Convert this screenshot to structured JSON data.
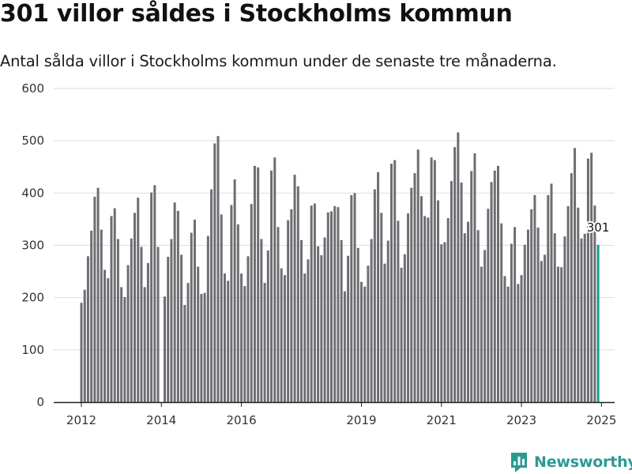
{
  "header": {
    "title": "301 villor såldes i Stockholms kommun",
    "subtitle": "Antal sålda villor i Stockholms kommun under de senaste tre månaderna."
  },
  "brand": {
    "name": "Newsworthy",
    "icon": "bar-chart-logo-icon"
  },
  "colors": {
    "bar": "#6e6d72",
    "highlight": "#1b9a8e",
    "grid": "#dddddd",
    "axis": "#222222",
    "brand": "#2b9a93"
  },
  "chart_data": {
    "type": "bar",
    "title": "",
    "xlabel": "",
    "ylabel": "",
    "ylim": [
      0,
      600
    ],
    "yticks": [
      "0",
      "100",
      "200",
      "300",
      "400",
      "500",
      "600"
    ],
    "xticks": [
      "2012",
      "2014",
      "2016",
      "2019",
      "2021",
      "2023",
      "2025"
    ],
    "grid": true,
    "legend": "none",
    "start_period": "2012-01",
    "values": [
      190,
      215,
      279,
      328,
      393,
      410,
      330,
      253,
      237,
      356,
      371,
      312,
      220,
      201,
      262,
      313,
      362,
      391,
      297,
      220,
      266,
      401,
      415,
      297,
      null,
      202,
      278,
      312,
      382,
      366,
      282,
      186,
      228,
      324,
      349,
      259,
      207,
      209,
      318,
      407,
      495,
      509,
      359,
      246,
      232,
      377,
      426,
      340,
      246,
      222,
      279,
      379,
      452,
      449,
      312,
      228,
      290,
      443,
      468,
      335,
      256,
      243,
      348,
      369,
      435,
      413,
      310,
      246,
      273,
      376,
      380,
      298,
      281,
      315,
      363,
      365,
      375,
      373,
      310,
      212,
      280,
      396,
      400,
      295,
      230,
      221,
      261,
      312,
      407,
      440,
      362,
      265,
      309,
      456,
      463,
      347,
      257,
      283,
      361,
      410,
      438,
      483,
      394,
      356,
      353,
      468,
      463,
      386,
      302,
      306,
      352,
      423,
      488,
      516,
      420,
      323,
      345,
      442,
      476,
      329,
      259,
      291,
      370,
      421,
      443,
      452,
      342,
      241,
      221,
      303,
      335,
      226,
      243,
      301,
      330,
      369,
      396,
      334,
      270,
      282,
      396,
      418,
      323,
      259,
      258,
      317,
      375,
      438,
      486,
      372,
      313,
      322,
      466,
      477,
      376,
      301
    ],
    "highlight": {
      "value": 301,
      "label": "301"
    }
  }
}
